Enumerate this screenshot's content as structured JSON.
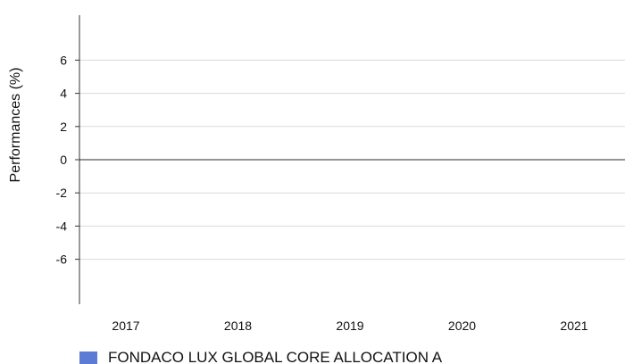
{
  "chart_data": {
    "type": "bar",
    "title": "",
    "xlabel": "",
    "ylabel": "Performances (%)",
    "categories": [
      "2017",
      "2018",
      "2019",
      "2020",
      "2021"
    ],
    "yticks": [
      6,
      4,
      2,
      0,
      -2,
      -4,
      -6
    ],
    "ylim": [
      -8.5,
      8.5
    ],
    "grid": true,
    "legend_position": "bottom-left",
    "series": [
      {
        "name": "FONDACO LUX GLOBAL CORE ALLOCATION A",
        "color": "#5b7bd5",
        "values": [
          null,
          null,
          null,
          null,
          null
        ]
      }
    ]
  }
}
